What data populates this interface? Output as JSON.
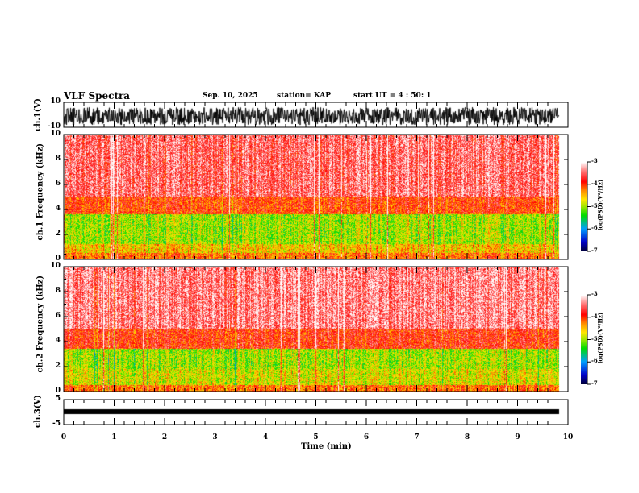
{
  "header": {
    "title": "VLF Spectra",
    "date": "Sep. 10, 2025",
    "station": "station= KAP",
    "start": "start  UT =   4 : 50: 1"
  },
  "chart_data": [
    {
      "type": "line",
      "name": "ch1-waveform",
      "ylabel": "ch.1(V)",
      "ylim": [
        -10,
        10
      ],
      "yticks": [
        "10",
        "-10"
      ],
      "xlim": [
        0,
        10
      ],
      "data_end_min": 9.83
    },
    {
      "type": "heatmap",
      "name": "ch1-spectrogram",
      "ylabel": "ch.1 Frequency (kHz)",
      "ylim": [
        0,
        10
      ],
      "yticks": [
        "0",
        "2",
        "4",
        "6",
        "8",
        "10"
      ],
      "colorbar": {
        "label": "log(PSD)(V²/Hz)",
        "range": [
          -7,
          -3
        ],
        "ticks": [
          "-3",
          "-4",
          "-5",
          "-6",
          "-7"
        ]
      },
      "bands": [
        {
          "from_khz": 0,
          "to_khz": 0.5,
          "level": -4.2
        },
        {
          "from_khz": 0.5,
          "to_khz": 1.2,
          "level": -4.6
        },
        {
          "from_khz": 1.2,
          "to_khz": 3.6,
          "level": -5.0
        },
        {
          "from_khz": 3.6,
          "to_khz": 5,
          "level": -4.0
        },
        {
          "from_khz": 5,
          "to_khz": 10,
          "level": -3.5
        }
      ]
    },
    {
      "type": "heatmap",
      "name": "ch2-spectrogram",
      "ylabel": "ch.2 Frequency (kHz)",
      "ylim": [
        0,
        10
      ],
      "yticks": [
        "0",
        "2",
        "4",
        "6",
        "8",
        "10"
      ],
      "colorbar": {
        "label": "log(PSD)(V²/Hz)",
        "range": [
          -7,
          -3
        ],
        "ticks": [
          "-3",
          "-4",
          "-5",
          "-6",
          "-7"
        ]
      },
      "bands": [
        {
          "from_khz": 0,
          "to_khz": 0.5,
          "level": -4.2
        },
        {
          "from_khz": 0.5,
          "to_khz": 1.8,
          "level": -4.8
        },
        {
          "from_khz": 1.8,
          "to_khz": 3.4,
          "level": -5.0
        },
        {
          "from_khz": 3.4,
          "to_khz": 5,
          "level": -3.9
        },
        {
          "from_khz": 5,
          "to_khz": 10,
          "level": -3.4
        }
      ]
    },
    {
      "type": "line",
      "name": "ch3-waveform",
      "ylabel": "ch.3(V)",
      "ylim": [
        -5,
        5
      ],
      "yticks": [
        "5",
        "-5"
      ],
      "value_approx": 0,
      "xlim": [
        0,
        10
      ],
      "data_end_min": 9.83
    }
  ],
  "xaxis": {
    "label": "Time (min)",
    "ticks": [
      "0",
      "1",
      "2",
      "3",
      "4",
      "5",
      "6",
      "7",
      "8",
      "9",
      "10"
    ]
  }
}
